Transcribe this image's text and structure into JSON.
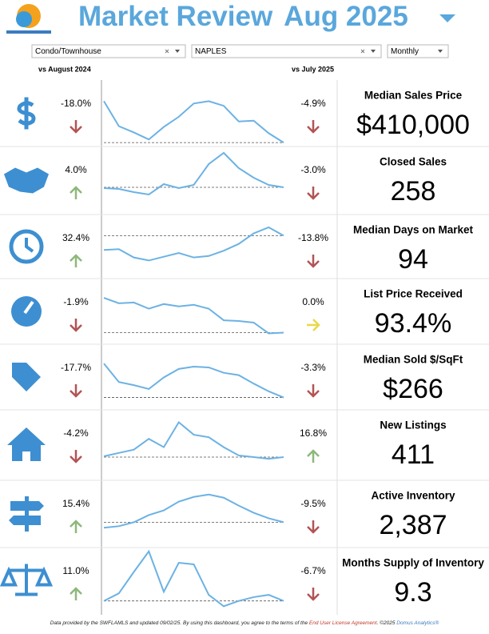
{
  "header": {
    "title": "Market Review",
    "period": "Aug 2025"
  },
  "filters": [
    "Condo/Townhouse",
    "NAPLES",
    "Monthly"
  ],
  "columns": {
    "yoy": "vs August 2024",
    "mom": "vs July 2025"
  },
  "metrics": [
    {
      "label": "Median Sales Price",
      "value": 410000,
      "value_label": "$410,000",
      "yoy": -18.0,
      "yoy_label": "-18.0%",
      "mom": -4.9,
      "mom_label": "-4.9%",
      "trend": [
        58,
        26,
        18,
        9,
        25,
        38,
        55,
        58,
        52,
        32,
        33,
        17,
        5
      ]
    },
    {
      "label": "Closed Sales",
      "value": 258,
      "yoy": 4.0,
      "yoy_label": "4.0%",
      "mom": -3.0,
      "mom_label": "-3.0%",
      "trend": [
        33,
        32,
        28,
        25,
        38,
        33,
        37,
        63,
        77,
        58,
        46,
        37,
        34
      ]
    },
    {
      "label": "Median Days on Market",
      "value": 94,
      "yoy": 32.4,
      "yoy_label": "32.4%",
      "mom": -13.8,
      "mom_label": "-13.8%",
      "trend": [
        38,
        39,
        28,
        24,
        29,
        34,
        28,
        30,
        37,
        46,
        60,
        68,
        57
      ]
    },
    {
      "label": "List Price Received",
      "value": 93.4,
      "value_label": "93.4%",
      "yoy": -1.9,
      "yoy_label": "-1.9%",
      "mom": 0.0,
      "mom_label": "0.0%",
      "trend": [
        60,
        53,
        54,
        46,
        52,
        49,
        51,
        46,
        31,
        30,
        28,
        14,
        15
      ]
    },
    {
      "label": "Median Sold $/SqFt",
      "value": 266,
      "value_label": "$266",
      "yoy": -17.7,
      "yoy_label": "-17.7%",
      "mom": -3.3,
      "mom_label": "-3.3%",
      "trend": [
        60,
        36,
        32,
        27,
        42,
        53,
        56,
        55,
        48,
        45,
        34,
        24,
        16
      ]
    },
    {
      "label": "New Listings",
      "value": 411,
      "yoy": -4.2,
      "yoy_label": "-4.2%",
      "mom": 16.8,
      "mom_label": "16.8%",
      "trend": [
        29,
        33,
        37,
        50,
        40,
        70,
        55,
        52,
        40,
        30,
        28,
        26,
        28
      ]
    },
    {
      "label": "Active Inventory",
      "value": 2387,
      "value_label": "2,387",
      "yoy": 15.4,
      "yoy_label": "15.4%",
      "mom": -9.5,
      "mom_label": "-9.5%",
      "trend": [
        25,
        27,
        32,
        41,
        47,
        58,
        64,
        67,
        63,
        53,
        44,
        37,
        32
      ]
    },
    {
      "label": "Months Supply of Inventory",
      "value": 9.3,
      "yoy": 11.0,
      "yoy_label": "11.0%",
      "mom": -6.7,
      "mom_label": "-6.7%",
      "trend": [
        15,
        25,
        53,
        80,
        27,
        65,
        63,
        23,
        8,
        15,
        20,
        23,
        15
      ]
    }
  ],
  "footer": {
    "text": "Data provided by the SWFLAMLS and updated 09/02/25.  By using this dashboard, you agree to the terms of the ",
    "link": "End User License Agreement",
    "text2": ".  ©2025 ",
    "brand": "Domus Analytics®"
  }
}
